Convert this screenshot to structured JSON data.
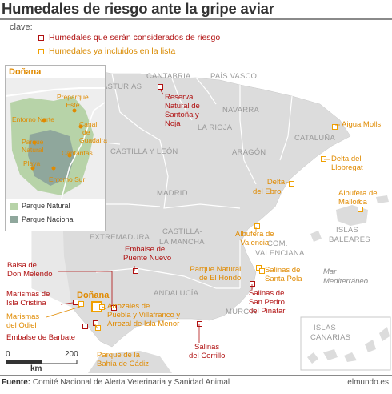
{
  "header": {
    "title": "Humedales de riesgo ante la gripe aviar",
    "legend_heading": "clave:"
  },
  "legend": [
    {
      "label": "Humedales que serán considerados de riesgo",
      "color": "#b01010"
    },
    {
      "label": "Humedales ya incluidos en la lista",
      "color": "#f0a000"
    }
  ],
  "regions": {
    "asturias": "ASTURIAS",
    "cantabria": "CANTABRIA",
    "pais_vasco": "PAÍS VASCO",
    "navarra": "NAVARRA",
    "la_rioja": "LA RIOJA",
    "aragon": "ARAGÓN",
    "cataluna": "CATALUÑA",
    "castilla_leon": "CASTILLA Y LEÓN",
    "madrid": "MADRID",
    "extremadura": "EXTREMADURA",
    "castilla_mancha_1": "CASTILLA-",
    "castilla_mancha_2": "LA MANCHA",
    "com_valenciana_1": "COM.",
    "com_valenciana_2": "VALENCIANA",
    "andalucia": "ANDALUCÍA",
    "murcia": "MURCIA",
    "baleares_1": "ISLAS",
    "baleares_2": "BALEARES",
    "canarias_1": "ISLAS",
    "canarias_2": "CANARIAS"
  },
  "sea": {
    "mar": "Mar",
    "mediterraneo": "Mediterráneo"
  },
  "wetlands": {
    "santona": [
      "Reserva",
      "Natural de",
      "Santoña y",
      "Noja"
    ],
    "aigua_molls": [
      "Aigua Molls"
    ],
    "llobregat": [
      "Delta del",
      "Llobregat"
    ],
    "ebro": [
      "Delta",
      "del Ebro"
    ],
    "albufera_mallorca": [
      "Albufera de",
      "Mallorca"
    ],
    "albufera_valencia": [
      "Albufera de",
      "Valencia"
    ],
    "hondo": [
      "Parque Natural",
      "de El Hondo"
    ],
    "santa_pola": [
      "Salinas de",
      "Santa Pola"
    ],
    "pinatar": [
      "Salinas de",
      "San Pedro",
      "del Pinatar"
    ],
    "cerrillo": [
      "Salinas",
      "del Cerrillo"
    ],
    "puente_nuevo": [
      "Embalse de",
      "Puente Nuevo"
    ],
    "melondo": [
      "Balsa de",
      "Don Melendo"
    ],
    "isla_cristina": [
      "Marismas de",
      "Isla Cristina"
    ],
    "donana": [
      "Doñana"
    ],
    "odiel": [
      "Marismas",
      "del Odiel"
    ],
    "arrozales": [
      "Arrozales de",
      "Puebla y Villafranco y",
      "Arrozal de Isla Menor"
    ],
    "barbate": [
      "Embalse de Barbate"
    ],
    "bahia_cadiz": [
      "Parque de la",
      "Bahía de Cádiz"
    ]
  },
  "inset": {
    "title": "Doñana",
    "labels": {
      "preparque": [
        "Preparque",
        "Este"
      ],
      "entorno_norte": [
        "Entorno Norte"
      ],
      "canal": [
        "Canal",
        "de",
        "Guadaira"
      ],
      "parque_natural": [
        "Parque",
        "Natural"
      ],
      "cantaritas": [
        "Cantaritas"
      ],
      "playa": [
        "Playa"
      ],
      "entorno_sur": [
        "Entorno Sur"
      ]
    },
    "legend": [
      {
        "label": "Parque Natural",
        "color": "#b7d3a8"
      },
      {
        "label": "Parque Nacional",
        "color": "#8fa79c"
      }
    ]
  },
  "scale": {
    "start": "0",
    "end": "200",
    "unit": "km"
  },
  "footer": {
    "source_label": "Fuente:",
    "source": "Comité Nacional de Alerta Veterinaria y Sanidad Animal",
    "brand": "elmundo.es"
  },
  "colors": {
    "land": "#dcdcdc",
    "sea": "#ffffff",
    "border": "#ffffff",
    "risk": "#b01010",
    "listed": "#f0a000"
  }
}
